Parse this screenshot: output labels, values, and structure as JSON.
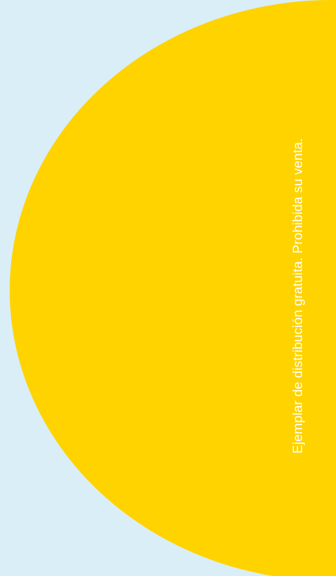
{
  "background_color": "#daeef8",
  "shape": {
    "icon": "half-circle",
    "color": "#fed300"
  },
  "side_text": {
    "text": "Ejemplar de distribución gratuita. Prohibida su venta.",
    "color": "#ffffff"
  }
}
